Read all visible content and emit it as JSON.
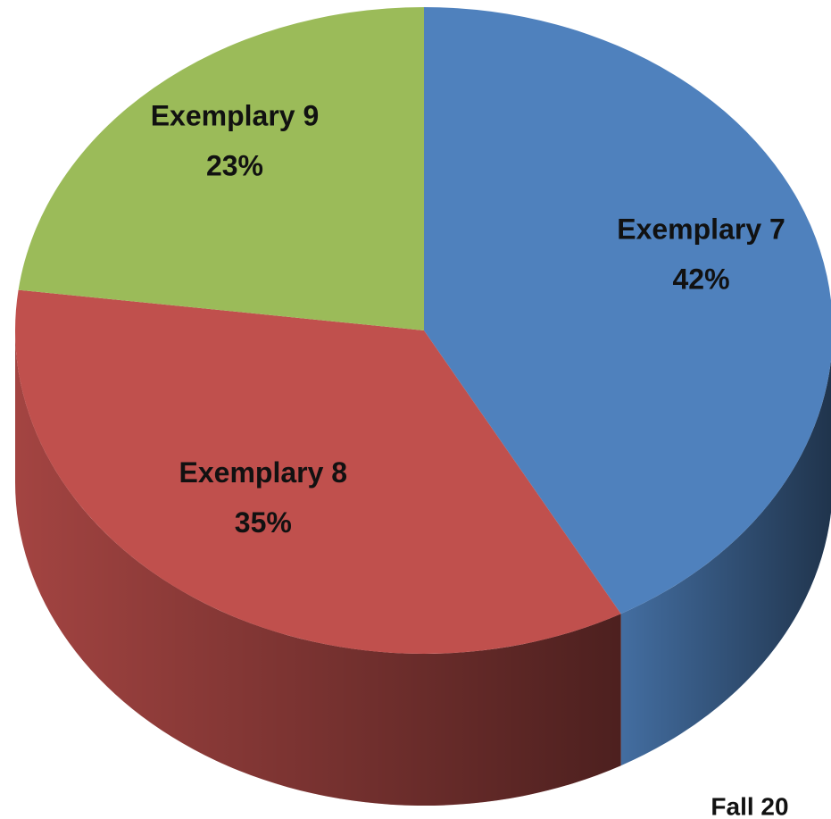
{
  "chart_data": {
    "type": "pie",
    "categories": [
      "Exemplary 7",
      "Exemplary 8",
      "Exemplary 9"
    ],
    "values": [
      42,
      35,
      23
    ],
    "value_labels": [
      "42%",
      "35%",
      "23%"
    ],
    "colors": [
      "#4f81bd",
      "#c0504d",
      "#9bbb59"
    ],
    "annotation": "Fall 20"
  }
}
